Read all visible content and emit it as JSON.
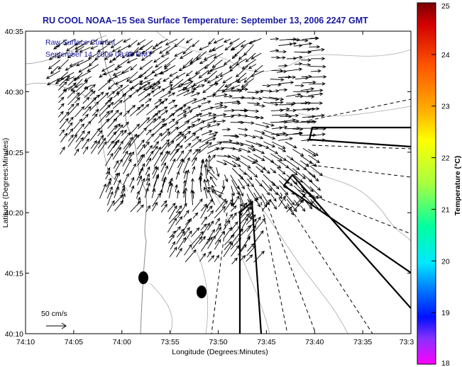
{
  "chart_data": {
    "type": "vector-field",
    "title": "RU COOL  NOAA–15  Sea Surface Temperature:  September 13, 2006 2247 GMT",
    "annotation": [
      "Raw Surface Current",
      "September 14, 2006 00:00 GMT"
    ],
    "xlabel": "Longitude (Degrees:Minutes)",
    "ylabel": "Latitude (Degrees:Minutes)",
    "x_ticks": [
      "74:10",
      "74:05",
      "74:00",
      "73:55",
      "73:50",
      "73:45",
      "73:40",
      "73:35",
      "73:3"
    ],
    "y_ticks": [
      "40:35",
      "40:30",
      "40:25",
      "40:20",
      "40:15",
      "40:10"
    ],
    "xlim_minutes": [
      -4450,
      -4410
    ],
    "ylim_minutes": [
      2410,
      2435
    ],
    "scale_label": "50 cm/s",
    "colorbar": {
      "label": "Temperature (°C)",
      "ticks": [
        "25",
        "24",
        "23",
        "22",
        "21",
        "20",
        "19",
        "18"
      ],
      "range": [
        18,
        25
      ]
    },
    "grid": false
  }
}
